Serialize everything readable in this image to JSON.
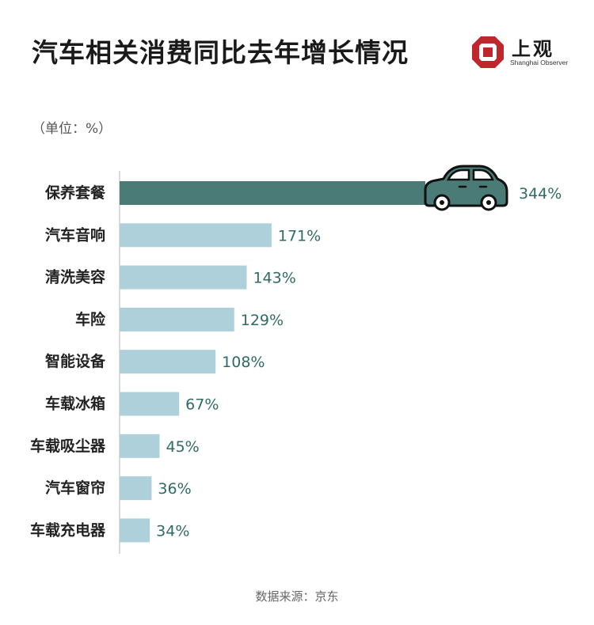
{
  "header": {
    "title": "汽车相关消费同比去年增长情况",
    "logo_text": "上观",
    "logo_subtitle": "Shanghai Observer"
  },
  "unit_label": "（单位：%）",
  "source_label": "数据来源：京东",
  "colors": {
    "highlight": "#4a7b77",
    "bar": "#aed0da",
    "value_text": "#2f6b63",
    "car": "#4a7b77"
  },
  "chart_data": {
    "type": "bar",
    "orientation": "horizontal",
    "title": "汽车相关消费同比去年增长情况",
    "xlabel": "",
    "ylabel": "",
    "categories": [
      "保养套餐",
      "汽车音响",
      "清洗美容",
      "车险",
      "智能设备",
      "车载冰箱",
      "车载吸尘器",
      "汽车窗帘",
      "车载充电器"
    ],
    "values": [
      344,
      171,
      143,
      129,
      108,
      67,
      45,
      36,
      34
    ],
    "value_labels": [
      "344%",
      "171%",
      "143%",
      "129%",
      "108%",
      "67%",
      "45%",
      "36%",
      "34%"
    ],
    "xlim": [
      0,
      350
    ],
    "grid": false,
    "legend": "none"
  }
}
